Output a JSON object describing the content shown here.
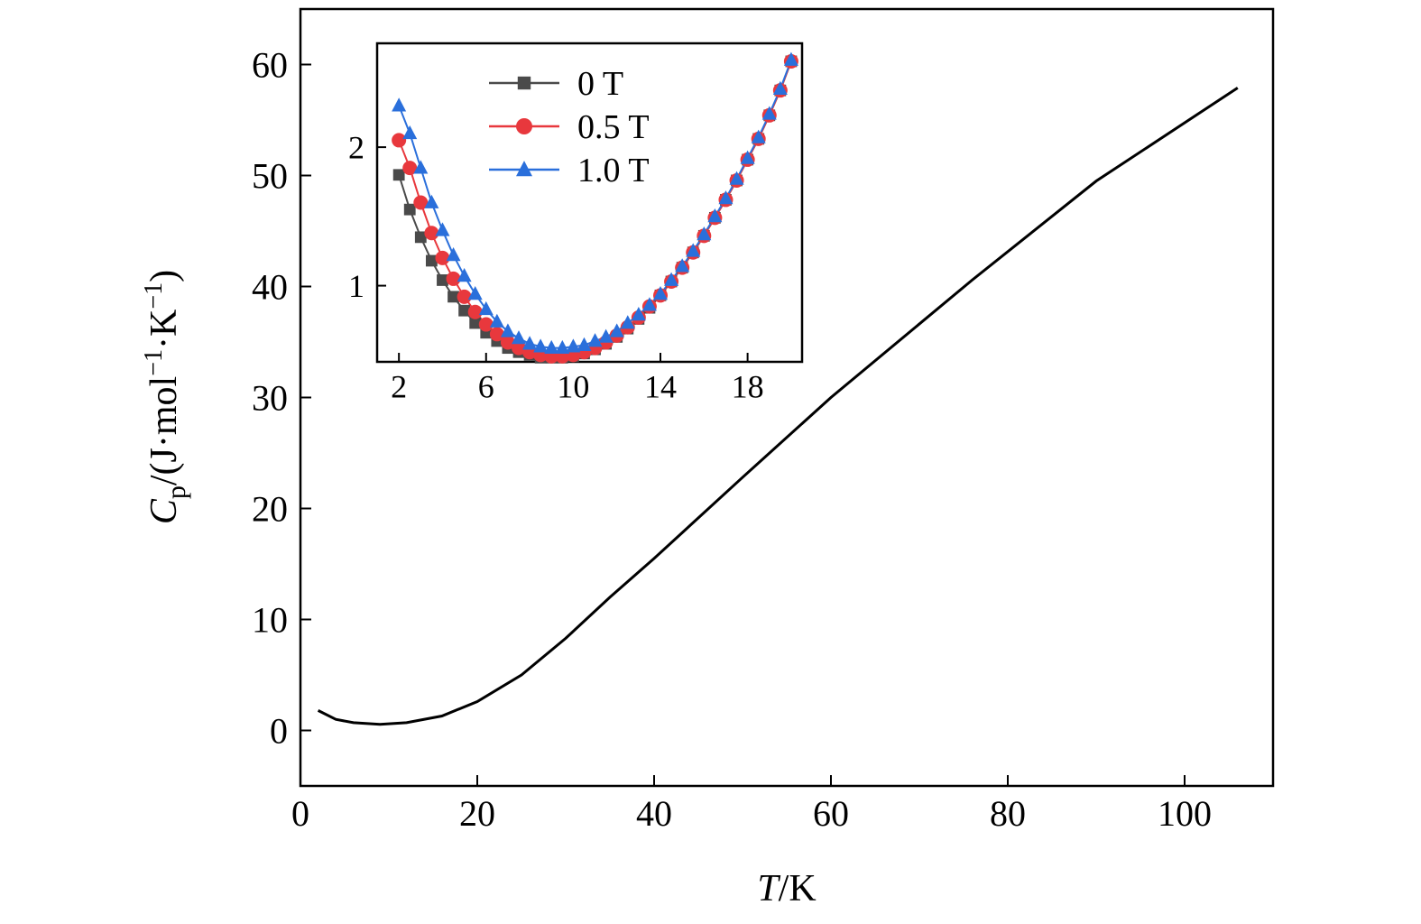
{
  "chart_data": [
    {
      "type": "line",
      "xlabel": [
        "T",
        "/K"
      ],
      "ylabel": [
        "C",
        "p",
        "/(J·mol",
        "−1",
        "·K",
        "−1",
        ")"
      ],
      "x": [
        2,
        4,
        6,
        9,
        12,
        16,
        20,
        25,
        30,
        35,
        40,
        50,
        60,
        76,
        90,
        106
      ],
      "values": [
        1.8,
        1.0,
        0.7,
        0.55,
        0.7,
        1.3,
        2.6,
        5.0,
        8.3,
        12.0,
        15.5,
        22.8,
        30.0,
        40.6,
        49.5,
        57.9
      ],
      "color": "#000000",
      "xlim": [
        0,
        110
      ],
      "xticks": [
        0,
        20,
        40,
        60,
        80,
        100
      ],
      "ylim": [
        -5,
        65
      ],
      "yticks": [
        0,
        10,
        20,
        30,
        40,
        50,
        60
      ]
    },
    {
      "type": "line",
      "x": [
        2,
        2.5,
        3,
        3.5,
        4,
        4.5,
        5,
        5.5,
        6,
        6.5,
        7,
        7.5,
        8,
        8.5,
        9,
        9.5,
        10,
        10.5,
        11,
        11.5,
        12,
        12.5,
        13,
        13.5,
        14,
        14.5,
        15,
        15.5,
        16,
        16.5,
        17,
        17.5,
        18,
        18.5,
        19,
        19.5,
        20
      ],
      "series": [
        {
          "name": "0 T",
          "color": "#4a4a4a",
          "marker": "square",
          "values": [
            1.8,
            1.55,
            1.35,
            1.18,
            1.04,
            0.92,
            0.82,
            0.73,
            0.66,
            0.6,
            0.55,
            0.52,
            0.5,
            0.48,
            0.48,
            0.48,
            0.49,
            0.51,
            0.54,
            0.58,
            0.63,
            0.69,
            0.76,
            0.84,
            0.93,
            1.03,
            1.13,
            1.24,
            1.36,
            1.49,
            1.62,
            1.76,
            1.91,
            2.06,
            2.23,
            2.41,
            2.62
          ]
        },
        {
          "name": "0.5 T",
          "color": "#e8383d",
          "marker": "circle",
          "values": [
            2.05,
            1.85,
            1.6,
            1.38,
            1.2,
            1.05,
            0.92,
            0.81,
            0.72,
            0.65,
            0.59,
            0.55,
            0.52,
            0.5,
            0.49,
            0.49,
            0.5,
            0.52,
            0.55,
            0.59,
            0.64,
            0.7,
            0.77,
            0.85,
            0.93,
            1.03,
            1.13,
            1.24,
            1.36,
            1.49,
            1.62,
            1.76,
            1.91,
            2.06,
            2.23,
            2.41,
            2.62
          ]
        },
        {
          "name": "1.0 T",
          "color": "#2a6fdb",
          "marker": "triangle",
          "values": [
            2.3,
            2.1,
            1.85,
            1.6,
            1.4,
            1.22,
            1.07,
            0.94,
            0.83,
            0.74,
            0.67,
            0.62,
            0.58,
            0.56,
            0.55,
            0.55,
            0.56,
            0.57,
            0.6,
            0.63,
            0.67,
            0.73,
            0.79,
            0.86,
            0.94,
            1.04,
            1.14,
            1.25,
            1.37,
            1.5,
            1.63,
            1.77,
            1.92,
            2.07,
            2.24,
            2.42,
            2.63
          ]
        }
      ],
      "xlim": [
        1,
        20.5
      ],
      "xticks": [
        2,
        6,
        10,
        14,
        18
      ],
      "ylim": [
        0.45,
        2.75
      ],
      "yticks": [
        1,
        2
      ],
      "legend": "upper center"
    }
  ]
}
